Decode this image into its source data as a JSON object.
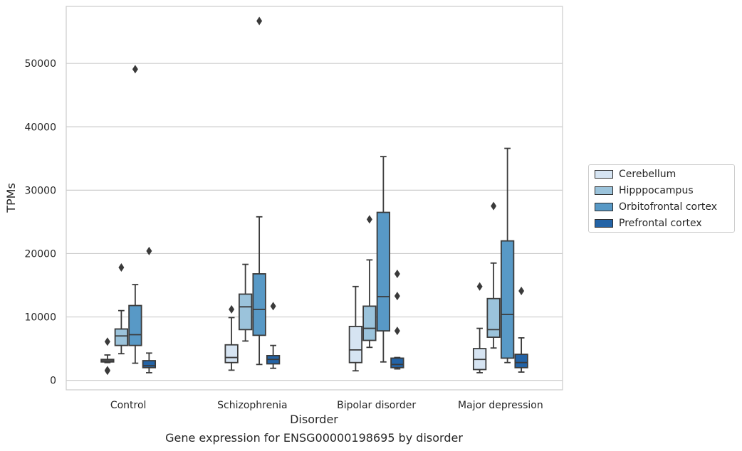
{
  "chart_data": {
    "type": "box",
    "xlabel": "Disorder",
    "ylabel": "TPMs",
    "caption": "Gene expression for ENSG00000198695 by disorder",
    "ylim": [
      -1500,
      59000
    ],
    "yticks": [
      0,
      10000,
      20000,
      30000,
      40000,
      50000
    ],
    "grid": "horizontal",
    "legend_position": "right",
    "categories": [
      "Control",
      "Schizophrenia",
      "Bipolar disorder",
      "Major depression"
    ],
    "series": [
      {
        "name": "Cerebellum",
        "color": "#d6e4f2",
        "boxes": [
          {
            "whisker_low": 2800,
            "q1": 2900,
            "median": 3100,
            "q3": 3300,
            "whisker_high": 4000,
            "outliers": [
              6100,
              1500,
              1600
            ]
          },
          {
            "whisker_low": 1600,
            "q1": 2800,
            "median": 3600,
            "q3": 5600,
            "whisker_high": 9900,
            "outliers": [
              11200
            ]
          },
          {
            "whisker_low": 1500,
            "q1": 2800,
            "median": 4800,
            "q3": 8500,
            "whisker_high": 14800,
            "outliers": []
          },
          {
            "whisker_low": 1200,
            "q1": 1700,
            "median": 3300,
            "q3": 5000,
            "whisker_high": 8200,
            "outliers": [
              14800
            ]
          }
        ]
      },
      {
        "name": "Hipppocampus",
        "color": "#9bc3db",
        "boxes": [
          {
            "whisker_low": 4200,
            "q1": 5500,
            "median": 7000,
            "q3": 8100,
            "whisker_high": 11000,
            "outliers": [
              17800
            ]
          },
          {
            "whisker_low": 6200,
            "q1": 8000,
            "median": 11600,
            "q3": 13600,
            "whisker_high": 18300,
            "outliers": []
          },
          {
            "whisker_low": 5200,
            "q1": 6300,
            "median": 8200,
            "q3": 11700,
            "whisker_high": 19000,
            "outliers": [
              25400
            ]
          },
          {
            "whisker_low": 5100,
            "q1": 6800,
            "median": 8000,
            "q3": 12900,
            "whisker_high": 18500,
            "outliers": [
              27500
            ]
          }
        ]
      },
      {
        "name": "Orbitofrontal cortex",
        "color": "#5899c6",
        "boxes": [
          {
            "whisker_low": 2700,
            "q1": 5500,
            "median": 7200,
            "q3": 11800,
            "whisker_high": 15100,
            "outliers": [
              49100
            ]
          },
          {
            "whisker_low": 2500,
            "q1": 7100,
            "median": 11200,
            "q3": 16800,
            "whisker_high": 25800,
            "outliers": [
              56700
            ]
          },
          {
            "whisker_low": 2900,
            "q1": 7800,
            "median": 13200,
            "q3": 26500,
            "whisker_high": 35300,
            "outliers": []
          },
          {
            "whisker_low": 2800,
            "q1": 3500,
            "median": 10400,
            "q3": 22000,
            "whisker_high": 36600,
            "outliers": []
          }
        ]
      },
      {
        "name": "Prefrontal cortex",
        "color": "#2363a6",
        "boxes": [
          {
            "whisker_low": 1200,
            "q1": 2000,
            "median": 2300,
            "q3": 3100,
            "whisker_high": 4300,
            "outliers": [
              20400
            ]
          },
          {
            "whisker_low": 1900,
            "q1": 2600,
            "median": 3300,
            "q3": 3900,
            "whisker_high": 5500,
            "outliers": [
              11700
            ]
          },
          {
            "whisker_low": 1800,
            "q1": 2000,
            "median": 2500,
            "q3": 3500,
            "whisker_high": 3600,
            "outliers": [
              16800,
              13300,
              7800
            ]
          },
          {
            "whisker_low": 1300,
            "q1": 2000,
            "median": 2800,
            "q3": 4100,
            "whisker_high": 6700,
            "outliers": [
              14100
            ]
          }
        ]
      }
    ]
  }
}
